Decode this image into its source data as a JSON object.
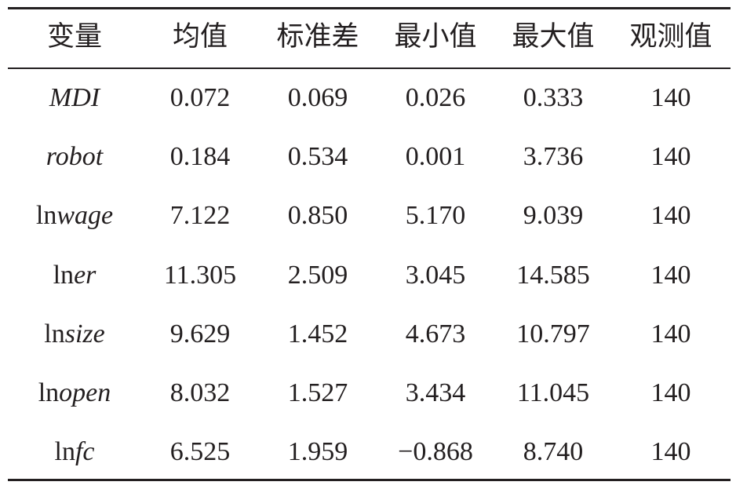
{
  "table": {
    "header": [
      "变量",
      "均值",
      "标准差",
      "最小值",
      "最大值",
      "观测值"
    ],
    "rows": [
      [
        {
          "name": "MDI"
        },
        "0.072",
        "0.069",
        "0.026",
        "0.333",
        "140"
      ],
      [
        {
          "name": "robot"
        },
        "0.184",
        "0.534",
        "0.001",
        "3.736",
        "140"
      ],
      [
        {
          "prefix": "ln",
          "name": "wage"
        },
        "7.122",
        "0.850",
        "5.170",
        "9.039",
        "140"
      ],
      [
        {
          "prefix": "ln",
          "name": "er"
        },
        "11.305",
        "2.509",
        "3.045",
        "14.585",
        "140"
      ],
      [
        {
          "prefix": "ln",
          "name": "size"
        },
        "9.629",
        "1.452",
        "4.673",
        "10.797",
        "140"
      ],
      [
        {
          "prefix": "ln",
          "name": "open"
        },
        "8.032",
        "1.527",
        "3.434",
        "11.045",
        "140"
      ],
      [
        {
          "prefix": "ln",
          "name": "fc"
        },
        "6.525",
        "1.959",
        "−0.868",
        "8.740",
        "140"
      ]
    ]
  }
}
